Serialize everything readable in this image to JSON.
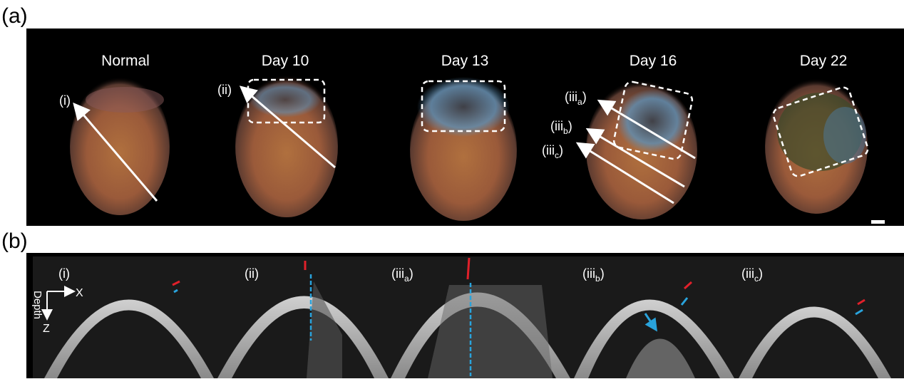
{
  "panel_a": {
    "label": "(a)",
    "timepoints": [
      {
        "title": "Normal",
        "markers": [
          {
            "base": "i",
            "sub": ""
          }
        ]
      },
      {
        "title": "Day 10",
        "markers": [
          {
            "base": "ii",
            "sub": ""
          }
        ]
      },
      {
        "title": "Day 13",
        "markers": []
      },
      {
        "title": "Day 16",
        "markers": [
          {
            "base": "iii",
            "sub": "a"
          },
          {
            "base": "iii",
            "sub": "b"
          },
          {
            "base": "iii",
            "sub": "c"
          }
        ]
      },
      {
        "title": "Day 22",
        "markers": []
      }
    ]
  },
  "panel_b": {
    "label": "(b)",
    "axis_x": "X",
    "axis_z": "Z",
    "axis_depth": "Depth",
    "sections": [
      {
        "base": "i",
        "sub": ""
      },
      {
        "base": "ii",
        "sub": ""
      },
      {
        "base": "iii",
        "sub": "a"
      },
      {
        "base": "iii",
        "sub": "b"
      },
      {
        "base": "iii",
        "sub": "c"
      }
    ]
  },
  "colors": {
    "red_marker": "#e0202a",
    "blue_marker": "#29a3dc",
    "background": "#000000"
  }
}
